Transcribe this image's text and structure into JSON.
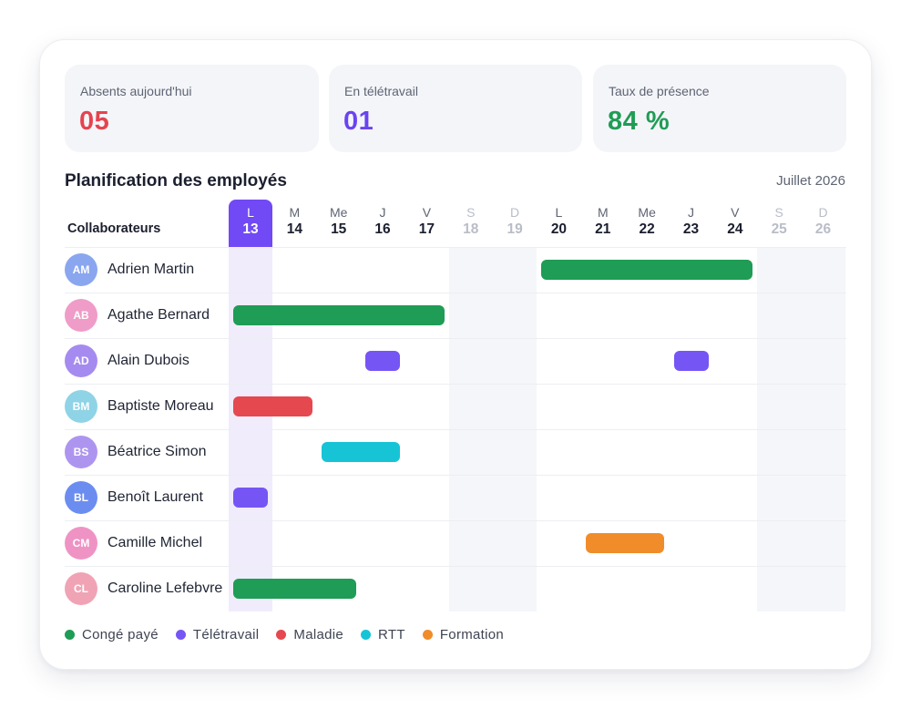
{
  "kpis": [
    {
      "label": "Absents aujourd'hui",
      "value": "05",
      "color": "#e5434f"
    },
    {
      "label": "En télétravail",
      "value": "01",
      "color": "#6a44ef"
    },
    {
      "label": "Taux de présence",
      "value": "84 %",
      "color": "#1f9c55"
    }
  ],
  "planning": {
    "title": "Planification des employés",
    "month": "Juillet 2026",
    "column_header": "Collaborateurs",
    "today_index": 0,
    "days": [
      {
        "letter": "L",
        "num": "13",
        "weekend": false
      },
      {
        "letter": "M",
        "num": "14",
        "weekend": false
      },
      {
        "letter": "Me",
        "num": "15",
        "weekend": false
      },
      {
        "letter": "J",
        "num": "16",
        "weekend": false
      },
      {
        "letter": "V",
        "num": "17",
        "weekend": false
      },
      {
        "letter": "S",
        "num": "18",
        "weekend": true
      },
      {
        "letter": "D",
        "num": "19",
        "weekend": true
      },
      {
        "letter": "L",
        "num": "20",
        "weekend": false
      },
      {
        "letter": "M",
        "num": "21",
        "weekend": false
      },
      {
        "letter": "Me",
        "num": "22",
        "weekend": false
      },
      {
        "letter": "J",
        "num": "23",
        "weekend": false
      },
      {
        "letter": "V",
        "num": "24",
        "weekend": false
      },
      {
        "letter": "S",
        "num": "25",
        "weekend": true
      },
      {
        "letter": "D",
        "num": "26",
        "weekend": true
      }
    ],
    "employees": [
      {
        "initials": "AM",
        "name": "Adrien Martin",
        "avatar_color": "#8aa6ef",
        "absences": [
          {
            "type": "conge",
            "start_day": 20,
            "end_day": 24
          }
        ]
      },
      {
        "initials": "AB",
        "name": "Agathe Bernard",
        "avatar_color": "#ef9cc8",
        "absences": [
          {
            "type": "conge",
            "start_day": 13,
            "end_day": 17
          }
        ]
      },
      {
        "initials": "AD",
        "name": "Alain Dubois",
        "avatar_color": "#a58bef",
        "absences": [
          {
            "type": "teletravail",
            "start_day": 16,
            "end_day": 16
          },
          {
            "type": "teletravail",
            "start_day": 23,
            "end_day": 23
          }
        ]
      },
      {
        "initials": "BM",
        "name": "Baptiste Moreau",
        "avatar_color": "#8fd3e6",
        "absences": [
          {
            "type": "maladie",
            "start_day": 13,
            "end_day": 14
          }
        ]
      },
      {
        "initials": "BS",
        "name": "Béatrice Simon",
        "avatar_color": "#ad95ef",
        "absences": [
          {
            "type": "rtt",
            "start_day": 15,
            "end_day": 16
          }
        ]
      },
      {
        "initials": "BL",
        "name": "Benoît Laurent",
        "avatar_color": "#6c8df0",
        "absences": [
          {
            "type": "teletravail",
            "start_day": 13,
            "end_day": 13
          }
        ]
      },
      {
        "initials": "CM",
        "name": "Camille Michel",
        "avatar_color": "#ef93c4",
        "absences": [
          {
            "type": "formation",
            "start_day": 21,
            "end_day": 22
          }
        ]
      },
      {
        "initials": "CL",
        "name": "Caroline Lefebvre",
        "avatar_color": "#f0a3b4",
        "absences": [
          {
            "type": "conge",
            "start_day": 13,
            "end_day": 15
          }
        ]
      }
    ]
  },
  "legend": [
    {
      "key": "conge",
      "label": "Congé payé",
      "color": "#1f9c55"
    },
    {
      "key": "teletravail",
      "label": "Télétravail",
      "color": "#7655f5"
    },
    {
      "key": "maladie",
      "label": "Maladie",
      "color": "#e5484f"
    },
    {
      "key": "rtt",
      "label": "RTT",
      "color": "#16c4d6"
    },
    {
      "key": "formation",
      "label": "Formation",
      "color": "#f08c2a"
    }
  ]
}
